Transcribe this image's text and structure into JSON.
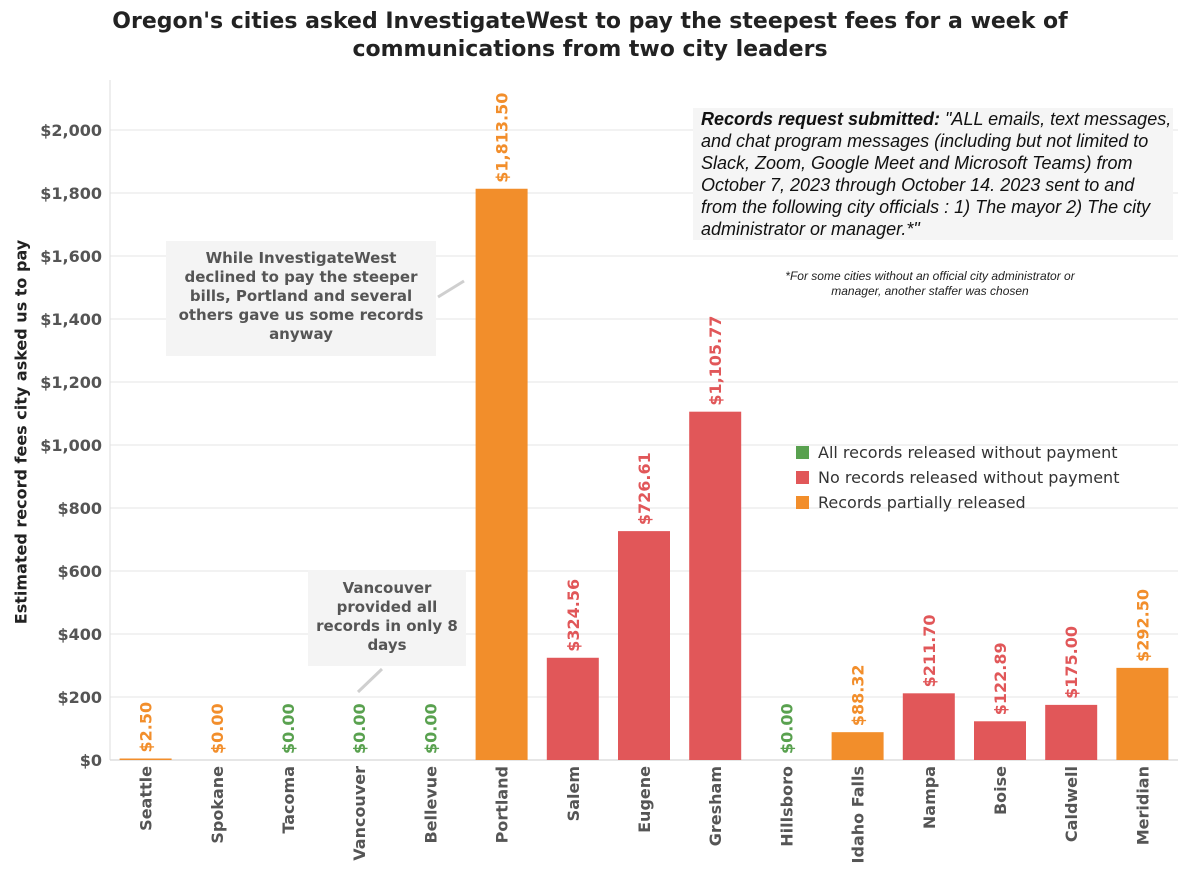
{
  "title_line1": "Oregon's cities asked InvestigateWest to pay the steepest fees for a week of",
  "title_line2": "communications from two city leaders",
  "colors": {
    "all_released": "#59a14f",
    "no_records": "#e15759",
    "partial": "#f28e2b",
    "grid": "#e6e6e6",
    "tick_text": "#555555"
  },
  "callout_portland": "While InvestigateWest declined to pay the steeper bills, Portland and several others gave us some records anyway",
  "callout_vancouver": "Vancouver provided all records in only 8 days",
  "request": {
    "label": "Records request submitted: ",
    "text": "\"ALL emails, text messages, and chat program messages (including but not limited to Slack, Zoom, Google Meet and Microsoft Teams) from October 7, 2023 through October 14. 2023 sent to and from the following city officials : 1) The mayor 2) The city administrator or manager.*\"",
    "note": "*For some cities without an official city administrator or manager, another staffer was chosen"
  },
  "legend": [
    {
      "label": "All records released without payment",
      "status": "all_released"
    },
    {
      "label": "No records released without payment",
      "status": "no_records"
    },
    {
      "label": "Records partially released",
      "status": "partial"
    }
  ],
  "chart_data": {
    "type": "bar",
    "title": "Oregon's cities asked InvestigateWest to pay the steepest fees for a week of communications from two city leaders",
    "ylabel": "Estimated record fees city asked us to pay",
    "xlabel": "",
    "ylim": [
      0,
      2200
    ],
    "yticks": [
      0,
      200,
      400,
      600,
      800,
      1000,
      1200,
      1400,
      1600,
      1800,
      2000
    ],
    "ytick_labels": [
      "$0",
      "$200",
      "$400",
      "$600",
      "$800",
      "$1,000",
      "$1,200",
      "$1,400",
      "$1,600",
      "$1,800",
      "$2,000"
    ],
    "grid": true,
    "legend_position": "right",
    "categories": [
      "Seattle",
      "Spokane",
      "Tacoma",
      "Vancouver",
      "Bellevue",
      "Portland",
      "Salem",
      "Eugene",
      "Gresham",
      "Hillsboro",
      "Idaho Falls",
      "Nampa",
      "Boise",
      "Caldwell",
      "Meridian"
    ],
    "values": [
      2.5,
      0,
      0,
      0,
      0,
      1813.5,
      324.56,
      726.61,
      1105.77,
      0,
      88.32,
      211.7,
      122.89,
      175.0,
      292.5
    ],
    "labels": [
      "$2.50",
      "$0.00",
      "$0.00",
      "$0.00",
      "$0.00",
      "$1,813.50",
      "$324.56",
      "$726.61",
      "$1,105.77",
      "$0.00",
      "$88.32",
      "$211.70",
      "$122.89",
      "$175.00",
      "$292.50"
    ],
    "status": [
      "partial",
      "partial",
      "all_released",
      "all_released",
      "all_released",
      "partial",
      "no_records",
      "no_records",
      "no_records",
      "all_released",
      "partial",
      "no_records",
      "no_records",
      "no_records",
      "partial"
    ]
  }
}
